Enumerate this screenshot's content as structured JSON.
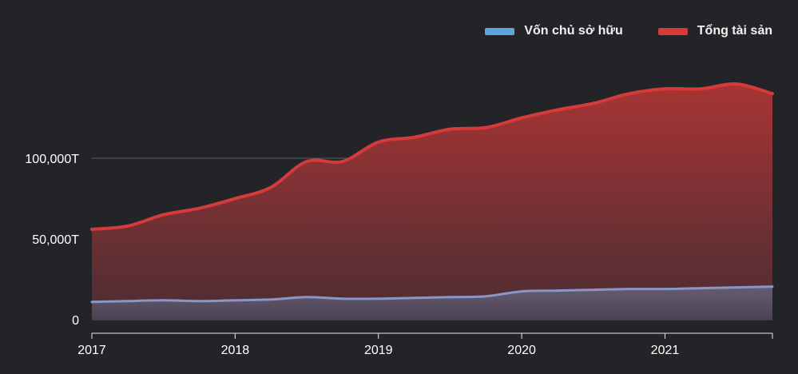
{
  "colors": {
    "background": "#232427",
    "equity": "#5aa7d9",
    "assets": "#d63a3a",
    "grid": "#5a5a5e"
  },
  "chart_data": {
    "type": "area",
    "legend_position": "top-right",
    "grid": true,
    "x_tick_labels": [
      "2017",
      "2018",
      "2019",
      "2020",
      "2021"
    ],
    "x_range": [
      2017.0,
      2021.75
    ],
    "y_tick_labels": [
      "0",
      "50,000T",
      "100,000T"
    ],
    "y_ticks": [
      0,
      50000,
      100000
    ],
    "ylim": [
      0,
      160000
    ],
    "x": [
      2017.0,
      2017.25,
      2017.5,
      2017.75,
      2018.0,
      2018.25,
      2018.5,
      2018.75,
      2019.0,
      2019.25,
      2019.5,
      2019.75,
      2020.0,
      2020.25,
      2020.5,
      2020.75,
      2021.0,
      2021.25,
      2021.5,
      2021.75
    ],
    "series": [
      {
        "name": "Vốn chủ sở hữu",
        "color": "#5aa7d9",
        "values": [
          11000,
          11500,
          12000,
          11500,
          12000,
          12500,
          14000,
          13000,
          13000,
          13500,
          14000,
          14500,
          17500,
          18000,
          18500,
          19000,
          19000,
          19500,
          20000,
          20500
        ]
      },
      {
        "name": "Tổng tài sản",
        "color": "#d63a3a",
        "values": [
          56000,
          58000,
          65000,
          69000,
          75000,
          82000,
          98000,
          98000,
          110000,
          113000,
          118000,
          119000,
          125000,
          130000,
          134000,
          140000,
          143000,
          143000,
          146000,
          140000
        ]
      }
    ]
  }
}
